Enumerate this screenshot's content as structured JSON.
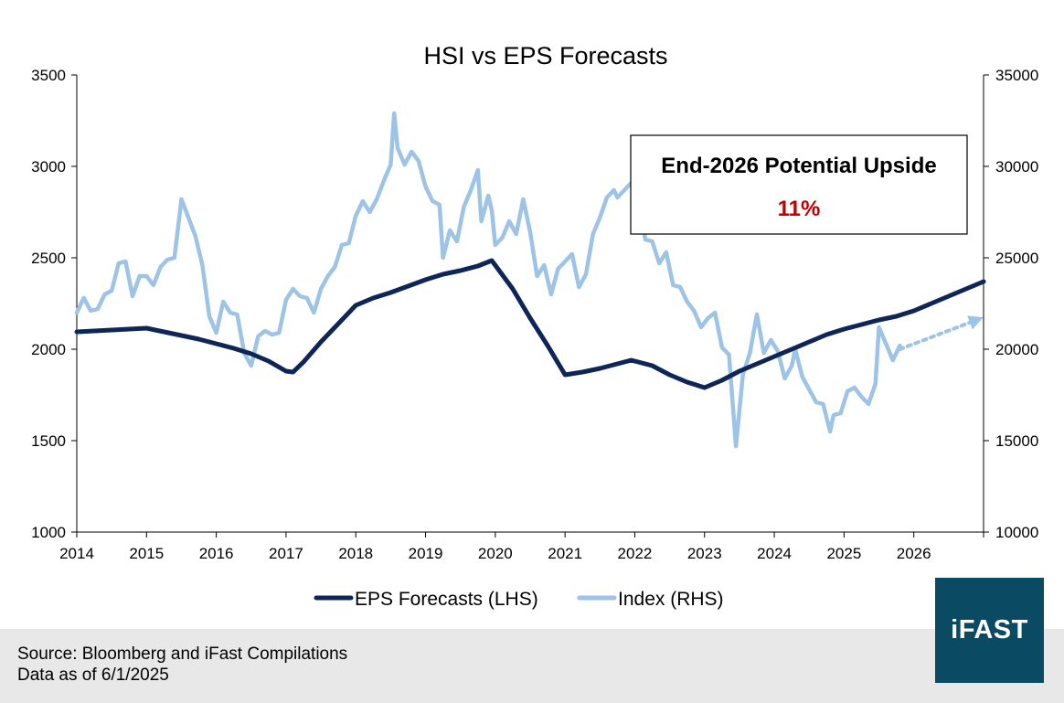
{
  "chart_data": {
    "type": "line",
    "title": "HSI vs EPS Forecasts",
    "x_ticks": [
      "2014",
      "2015",
      "2016",
      "2017",
      "2018",
      "2019",
      "2020",
      "2021",
      "2022",
      "2023",
      "2024",
      "2025",
      "2026"
    ],
    "x_range": [
      2014,
      2027
    ],
    "y_left": {
      "label": "EPS Forecasts (LHS)",
      "range": [
        1000,
        3500
      ],
      "ticks": [
        "1000",
        "1500",
        "2000",
        "2500",
        "3000",
        "3500"
      ]
    },
    "y_right": {
      "label": "Index (RHS)",
      "range": [
        10000,
        35000
      ],
      "ticks": [
        "10000",
        "15000",
        "20000",
        "25000",
        "30000",
        "35000"
      ]
    },
    "grid": false,
    "legend_position": "bottom",
    "series": [
      {
        "name": "EPS Forecasts (LHS)",
        "axis": "left",
        "color": "#0d2557",
        "points": [
          [
            2014.0,
            2095
          ],
          [
            2014.25,
            2100
          ],
          [
            2014.5,
            2105
          ],
          [
            2014.75,
            2110
          ],
          [
            2015.0,
            2115
          ],
          [
            2015.25,
            2095
          ],
          [
            2015.5,
            2075
          ],
          [
            2015.75,
            2055
          ],
          [
            2016.0,
            2030
          ],
          [
            2016.25,
            2005
          ],
          [
            2016.5,
            1975
          ],
          [
            2016.75,
            1935
          ],
          [
            2017.0,
            1880
          ],
          [
            2017.1,
            1875
          ],
          [
            2017.25,
            1930
          ],
          [
            2017.5,
            2040
          ],
          [
            2017.75,
            2140
          ],
          [
            2018.0,
            2240
          ],
          [
            2018.25,
            2280
          ],
          [
            2018.5,
            2310
          ],
          [
            2018.75,
            2345
          ],
          [
            2019.0,
            2380
          ],
          [
            2019.25,
            2410
          ],
          [
            2019.5,
            2430
          ],
          [
            2019.75,
            2455
          ],
          [
            2019.95,
            2485
          ],
          [
            2020.25,
            2330
          ],
          [
            2020.5,
            2170
          ],
          [
            2020.75,
            2020
          ],
          [
            2021.0,
            1860
          ],
          [
            2021.25,
            1875
          ],
          [
            2021.5,
            1895
          ],
          [
            2021.75,
            1920
          ],
          [
            2021.95,
            1940
          ],
          [
            2022.25,
            1910
          ],
          [
            2022.5,
            1860
          ],
          [
            2022.75,
            1820
          ],
          [
            2023.0,
            1790
          ],
          [
            2023.25,
            1830
          ],
          [
            2023.5,
            1880
          ],
          [
            2023.75,
            1920
          ],
          [
            2024.0,
            1960
          ],
          [
            2024.25,
            2000
          ],
          [
            2024.5,
            2040
          ],
          [
            2024.75,
            2080
          ],
          [
            2025.0,
            2110
          ],
          [
            2025.25,
            2135
          ],
          [
            2025.5,
            2160
          ],
          [
            2025.75,
            2180
          ],
          [
            2026.0,
            2210
          ],
          [
            2026.25,
            2250
          ],
          [
            2026.5,
            2290
          ],
          [
            2026.75,
            2330
          ],
          [
            2027.0,
            2370
          ]
        ]
      },
      {
        "name": "Index (RHS)",
        "axis": "right",
        "color": "#9dc3e6",
        "points": [
          [
            2014.0,
            22000
          ],
          [
            2014.1,
            22800
          ],
          [
            2014.2,
            22100
          ],
          [
            2014.3,
            22200
          ],
          [
            2014.4,
            23000
          ],
          [
            2014.5,
            23200
          ],
          [
            2014.6,
            24700
          ],
          [
            2014.7,
            24800
          ],
          [
            2014.8,
            22900
          ],
          [
            2014.9,
            24000
          ],
          [
            2015.0,
            24000
          ],
          [
            2015.1,
            23500
          ],
          [
            2015.2,
            24500
          ],
          [
            2015.3,
            24900
          ],
          [
            2015.4,
            25000
          ],
          [
            2015.5,
            28200
          ],
          [
            2015.6,
            27200
          ],
          [
            2015.7,
            26200
          ],
          [
            2015.8,
            24600
          ],
          [
            2015.9,
            21800
          ],
          [
            2016.0,
            20900
          ],
          [
            2016.1,
            22600
          ],
          [
            2016.2,
            22000
          ],
          [
            2016.3,
            21900
          ],
          [
            2016.4,
            19800
          ],
          [
            2016.5,
            19100
          ],
          [
            2016.6,
            20700
          ],
          [
            2016.7,
            21000
          ],
          [
            2016.8,
            20800
          ],
          [
            2016.9,
            20900
          ],
          [
            2017.0,
            22700
          ],
          [
            2017.1,
            23300
          ],
          [
            2017.2,
            22900
          ],
          [
            2017.3,
            22800
          ],
          [
            2017.4,
            22000
          ],
          [
            2017.5,
            23300
          ],
          [
            2017.6,
            24000
          ],
          [
            2017.7,
            24500
          ],
          [
            2017.8,
            25700
          ],
          [
            2017.9,
            25800
          ],
          [
            2018.0,
            27300
          ],
          [
            2018.1,
            28100
          ],
          [
            2018.2,
            27500
          ],
          [
            2018.3,
            28200
          ],
          [
            2018.4,
            29200
          ],
          [
            2018.5,
            30100
          ],
          [
            2018.55,
            32900
          ],
          [
            2018.6,
            31000
          ],
          [
            2018.7,
            30100
          ],
          [
            2018.8,
            30800
          ],
          [
            2018.9,
            30300
          ],
          [
            2019.0,
            28900
          ],
          [
            2019.1,
            28100
          ],
          [
            2019.2,
            27900
          ],
          [
            2019.25,
            25000
          ],
          [
            2019.35,
            26500
          ],
          [
            2019.45,
            25900
          ],
          [
            2019.55,
            27800
          ],
          [
            2019.65,
            28700
          ],
          [
            2019.75,
            29800
          ],
          [
            2019.8,
            27000
          ],
          [
            2019.9,
            28400
          ],
          [
            2019.95,
            27600
          ],
          [
            2020.0,
            25700
          ],
          [
            2020.1,
            26100
          ],
          [
            2020.2,
            27000
          ],
          [
            2020.3,
            26300
          ],
          [
            2020.4,
            28200
          ],
          [
            2020.5,
            26400
          ],
          [
            2020.6,
            24000
          ],
          [
            2020.7,
            24600
          ],
          [
            2020.8,
            23000
          ],
          [
            2020.9,
            24400
          ],
          [
            2021.0,
            24800
          ],
          [
            2021.1,
            25200
          ],
          [
            2021.2,
            23400
          ],
          [
            2021.3,
            24100
          ],
          [
            2021.4,
            26300
          ],
          [
            2021.5,
            27200
          ],
          [
            2021.6,
            28300
          ],
          [
            2021.7,
            28700
          ],
          [
            2021.75,
            28300
          ],
          [
            2021.85,
            28700
          ],
          [
            2021.95,
            29100
          ],
          [
            2022.05,
            28900
          ],
          [
            2022.15,
            26000
          ],
          [
            2022.25,
            25900
          ],
          [
            2022.35,
            24700
          ],
          [
            2022.45,
            25300
          ],
          [
            2022.55,
            23500
          ],
          [
            2022.65,
            23400
          ],
          [
            2022.75,
            22600
          ],
          [
            2022.85,
            22100
          ],
          [
            2022.95,
            21200
          ],
          [
            2023.05,
            21700
          ],
          [
            2023.15,
            22000
          ],
          [
            2023.25,
            20100
          ],
          [
            2023.35,
            19700
          ],
          [
            2023.45,
            14700
          ],
          [
            2023.55,
            18600
          ],
          [
            2023.65,
            19800
          ],
          [
            2023.75,
            21900
          ],
          [
            2023.85,
            19800
          ],
          [
            2023.95,
            20500
          ],
          [
            2024.05,
            19900
          ],
          [
            2024.15,
            18400
          ],
          [
            2024.25,
            19100
          ],
          [
            2024.3,
            20000
          ],
          [
            2024.4,
            18500
          ],
          [
            2024.5,
            17800
          ],
          [
            2024.6,
            17100
          ],
          [
            2024.7,
            17000
          ],
          [
            2024.8,
            15500
          ],
          [
            2024.85,
            16400
          ],
          [
            2024.95,
            16500
          ],
          [
            2025.05,
            17700
          ],
          [
            2025.15,
            17900
          ],
          [
            2025.25,
            17400
          ],
          [
            2025.35,
            17000
          ],
          [
            2025.45,
            18100
          ],
          [
            2025.5,
            21200
          ],
          [
            2025.6,
            20300
          ],
          [
            2025.7,
            19400
          ],
          [
            2025.8,
            20200
          ]
        ]
      }
    ],
    "projection": {
      "axis": "right",
      "from": [
        2025.8,
        20000
      ],
      "to": [
        2026.9,
        21600
      ],
      "style": "dotted-arrow"
    },
    "annotation": {
      "title": "End-2026 Potential Upside",
      "value": "11%"
    }
  },
  "footer": {
    "source": "Source: Bloomberg and iFast Compilations",
    "data_as_of": "Data as of 6/1/2025"
  },
  "logo": {
    "text": "iFAST",
    "color": "#0b4a63"
  }
}
